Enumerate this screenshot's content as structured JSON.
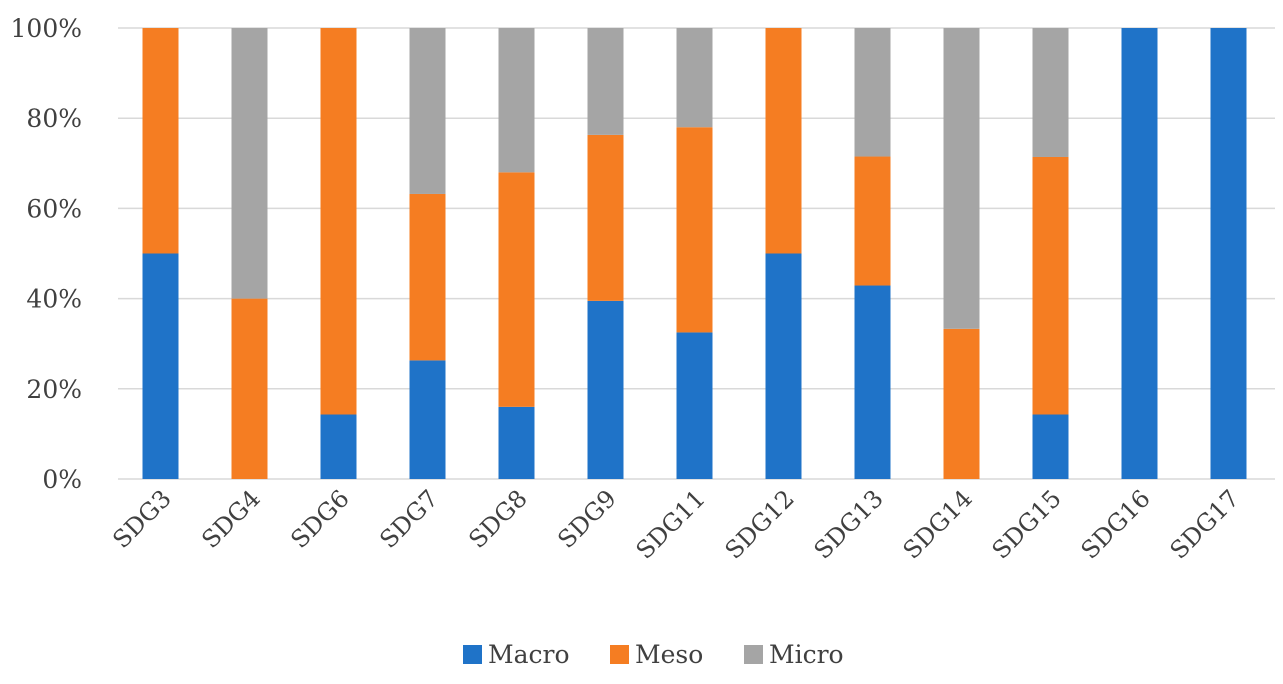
{
  "chart_data": {
    "type": "bar",
    "stacked": "percent",
    "categories": [
      "SDG3",
      "SDG4",
      "SDG6",
      "SDG7",
      "SDG8",
      "SDG9",
      "SDG11",
      "SDG12",
      "SDG13",
      "SDG14",
      "SDG15",
      "SDG16",
      "SDG17"
    ],
    "series": [
      {
        "name": "Macro",
        "color": "#1f73c8",
        "values": [
          50,
          0,
          14.3,
          26.3,
          16,
          39.5,
          32.5,
          50,
          42.9,
          0,
          14.3,
          100,
          100
        ]
      },
      {
        "name": "Meso",
        "color": "#f57d22",
        "values": [
          50,
          40,
          85.7,
          36.9,
          52,
          36.8,
          45.5,
          50,
          28.6,
          33.3,
          57.1,
          0,
          0
        ]
      },
      {
        "name": "Micro",
        "color": "#a5a5a5",
        "values": [
          0,
          60,
          0,
          36.8,
          32,
          23.7,
          22,
          0,
          28.5,
          66.7,
          28.6,
          0,
          0
        ]
      }
    ],
    "yticks": [
      "0%",
      "20%",
      "40%",
      "60%",
      "80%",
      "100%"
    ],
    "ylim": [
      0,
      100
    ],
    "grid": true,
    "legend": "bottom"
  }
}
